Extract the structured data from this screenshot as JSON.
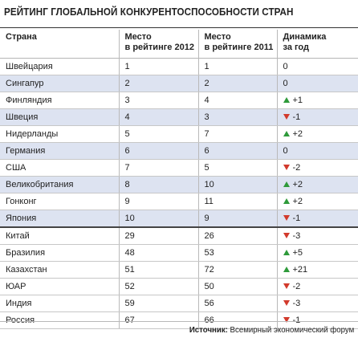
{
  "title": "РЕЙТИНГ ГЛОБАЛЬНОЙ КОНКУРЕНТОСПОСОБНОСТИ СТРАН",
  "headers": {
    "country": "Страна",
    "rank2012_l1": "Место",
    "rank2012_l2": "в рейтинге 2012",
    "rank2011_l1": "Место",
    "rank2011_l2": "в рейтинге 2011",
    "change_l1": "Динамика",
    "change_l2": "за год"
  },
  "rows": [
    {
      "country": "Швейцария",
      "rank_2012": "1",
      "rank_2011": "1",
      "change": "0",
      "trend": "none"
    },
    {
      "country": "Сингапур",
      "rank_2012": "2",
      "rank_2011": "2",
      "change": "0",
      "trend": "none"
    },
    {
      "country": "Финляндия",
      "rank_2012": "3",
      "rank_2011": "4",
      "change": "+1",
      "trend": "up"
    },
    {
      "country": "Швеция",
      "rank_2012": "4",
      "rank_2011": "3",
      "change": "-1",
      "trend": "down"
    },
    {
      "country": "Нидерланды",
      "rank_2012": "5",
      "rank_2011": "7",
      "change": "+2",
      "trend": "up"
    },
    {
      "country": "Германия",
      "rank_2012": "6",
      "rank_2011": "6",
      "change": "0",
      "trend": "none"
    },
    {
      "country": "США",
      "rank_2012": "7",
      "rank_2011": "5",
      "change": "-2",
      "trend": "down"
    },
    {
      "country": "Великобритания",
      "rank_2012": "8",
      "rank_2011": "10",
      "change": "+2",
      "trend": "up"
    },
    {
      "country": "Гонконг",
      "rank_2012": "9",
      "rank_2011": "11",
      "change": "+2",
      "trend": "up"
    },
    {
      "country": "Япония",
      "rank_2012": "10",
      "rank_2011": "9",
      "change": "-1",
      "trend": "down"
    },
    {
      "country": "Китай",
      "rank_2012": "29",
      "rank_2011": "26",
      "change": "-3",
      "trend": "down"
    },
    {
      "country": "Бразилия",
      "rank_2012": "48",
      "rank_2011": "53",
      "change": "+5",
      "trend": "up"
    },
    {
      "country": "Казахстан",
      "rank_2012": "51",
      "rank_2011": "72",
      "change": "+21",
      "trend": "up"
    },
    {
      "country": "ЮАР",
      "rank_2012": "52",
      "rank_2011": "50",
      "change": "-2",
      "trend": "down"
    },
    {
      "country": "Индия",
      "rank_2012": "59",
      "rank_2011": "56",
      "change": "-3",
      "trend": "down"
    },
    {
      "country": "Россия",
      "rank_2012": "67",
      "rank_2011": "66",
      "change": "-1",
      "trend": "down"
    }
  ],
  "source": {
    "label": "Источник:",
    "text": "Всемирный экономический форум"
  },
  "colors": {
    "up": "#2e9a3a",
    "down": "#d23a2c",
    "stripe": "#dde3f1"
  },
  "icons": {
    "up": "triangle-up-icon",
    "down": "triangle-down-icon"
  }
}
